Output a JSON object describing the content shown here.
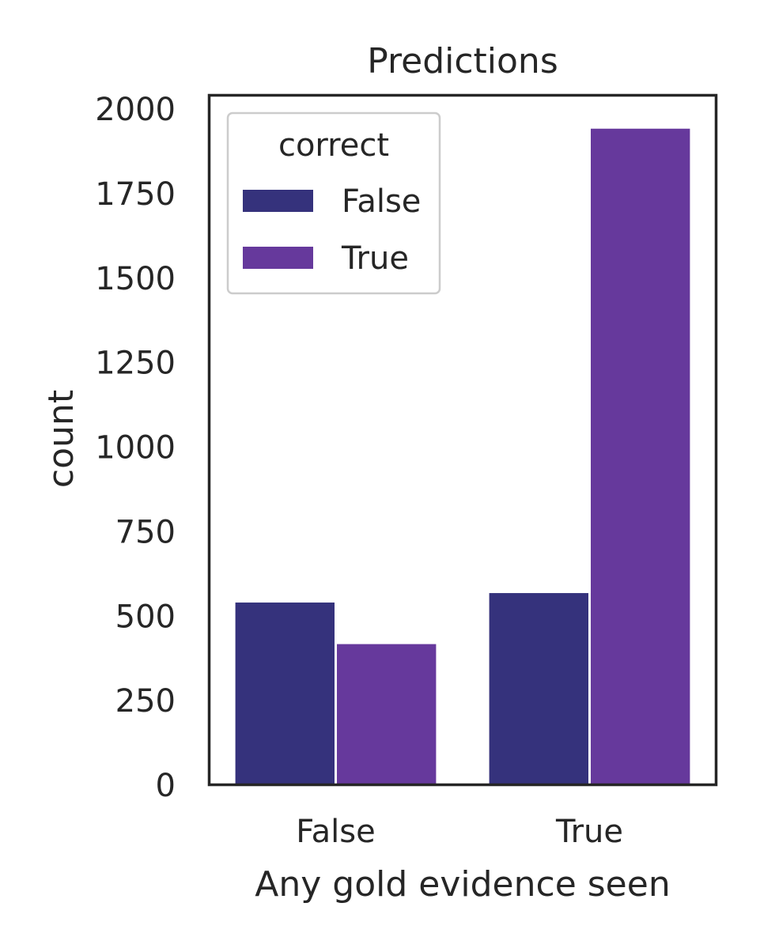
{
  "chart_data": {
    "type": "bar",
    "title": "Predictions",
    "xlabel": "Any gold evidence seen",
    "ylabel": "count",
    "categories": [
      "False",
      "True"
    ],
    "ylim": [
      0,
      2040
    ],
    "yticks": [
      0,
      250,
      500,
      750,
      1000,
      1250,
      1500,
      1750,
      2000
    ],
    "grid": false,
    "legend": {
      "title": "correct",
      "placement": "top-left"
    },
    "series": [
      {
        "name": "False",
        "values": [
          538,
          566
        ],
        "color": "#35327c"
      },
      {
        "name": "True",
        "values": [
          415,
          1940
        ],
        "color": "#66399c"
      }
    ]
  }
}
